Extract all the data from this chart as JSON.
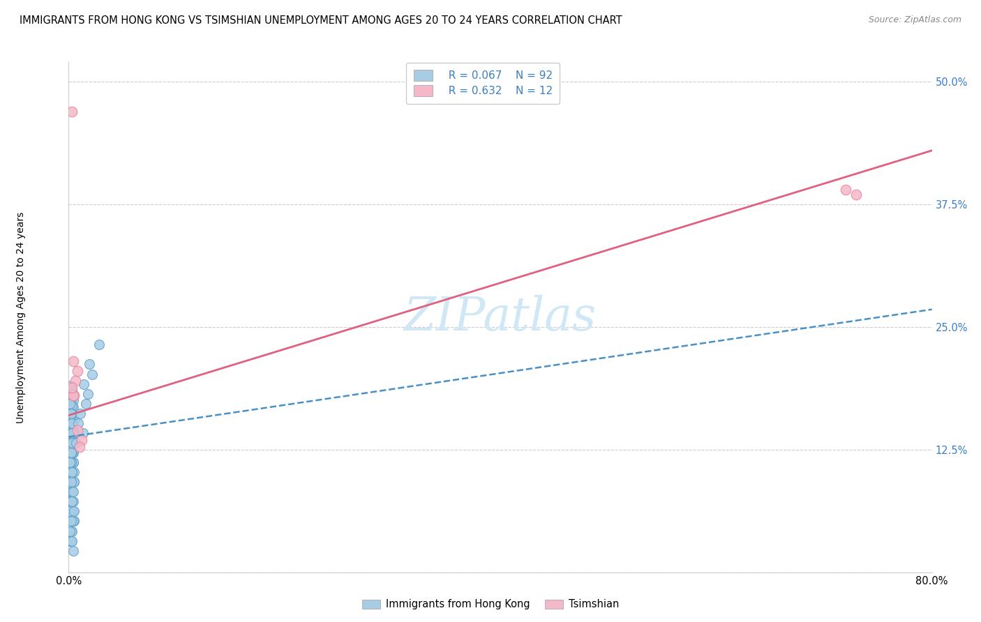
{
  "title": "IMMIGRANTS FROM HONG KONG VS TSIMSHIAN UNEMPLOYMENT AMONG AGES 20 TO 24 YEARS CORRELATION CHART",
  "source": "Source: ZipAtlas.com",
  "ylabel": "Unemployment Among Ages 20 to 24 years",
  "xlim": [
    0.0,
    0.8
  ],
  "ylim": [
    0.0,
    0.52
  ],
  "yticks": [
    0.0,
    0.125,
    0.25,
    0.375,
    0.5
  ],
  "ytick_labels": [
    "",
    "12.5%",
    "25.0%",
    "37.5%",
    "50.0%"
  ],
  "xticks": [
    0.0,
    0.1,
    0.2,
    0.3,
    0.4,
    0.5,
    0.6,
    0.7,
    0.8
  ],
  "xtick_labels": [
    "0.0%",
    "",
    "",
    "",
    "",
    "",
    "",
    "",
    "80.0%"
  ],
  "legend_label1": "Immigrants from Hong Kong",
  "legend_label2": "Tsimshian",
  "blue_color": "#a8cce4",
  "pink_color": "#f4b8c8",
  "blue_edge_color": "#5b9fc8",
  "pink_edge_color": "#e8849a",
  "blue_line_color": "#4a90c4",
  "pink_line_color": "#e06080",
  "watermark_color": "#d0e8f5",
  "R1": "0.067",
  "N1": "92",
  "R2": "0.632",
  "N2": "12",
  "blue_points_x": [
    0.004,
    0.003,
    0.002,
    0.004,
    0.005,
    0.003,
    0.002,
    0.001,
    0.003,
    0.003,
    0.002,
    0.004,
    0.003,
    0.004,
    0.002,
    0.001,
    0.003,
    0.002,
    0.004,
    0.003,
    0.002,
    0.001,
    0.003,
    0.002,
    0.004,
    0.003,
    0.005,
    0.002,
    0.001,
    0.004,
    0.003,
    0.002,
    0.004,
    0.003,
    0.002,
    0.004,
    0.005,
    0.003,
    0.002,
    0.001,
    0.003,
    0.003,
    0.002,
    0.004,
    0.003,
    0.004,
    0.002,
    0.001,
    0.003,
    0.002,
    0.004,
    0.003,
    0.005,
    0.002,
    0.001,
    0.004,
    0.003,
    0.002,
    0.004,
    0.003,
    0.002,
    0.003,
    0.005,
    0.003,
    0.002,
    0.001,
    0.004,
    0.003,
    0.002,
    0.004,
    0.003,
    0.003,
    0.002,
    0.001,
    0.003,
    0.002,
    0.004,
    0.003,
    0.005,
    0.002,
    0.001,
    0.003,
    0.009,
    0.013,
    0.007,
    0.011,
    0.016,
    0.018,
    0.014,
    0.022,
    0.019,
    0.028
  ],
  "blue_points_y": [
    0.175,
    0.185,
    0.19,
    0.168,
    0.155,
    0.148,
    0.172,
    0.182,
    0.162,
    0.152,
    0.145,
    0.135,
    0.17,
    0.122,
    0.112,
    0.102,
    0.092,
    0.082,
    0.145,
    0.155,
    0.162,
    0.172,
    0.132,
    0.122,
    0.112,
    0.102,
    0.092,
    0.082,
    0.072,
    0.062,
    0.162,
    0.152,
    0.142,
    0.132,
    0.122,
    0.112,
    0.102,
    0.092,
    0.082,
    0.072,
    0.062,
    0.052,
    0.042,
    0.142,
    0.132,
    0.122,
    0.112,
    0.102,
    0.092,
    0.082,
    0.072,
    0.062,
    0.052,
    0.042,
    0.032,
    0.142,
    0.152,
    0.162,
    0.132,
    0.122,
    0.112,
    0.102,
    0.092,
    0.082,
    0.072,
    0.062,
    0.052,
    0.042,
    0.032,
    0.022,
    0.142,
    0.132,
    0.122,
    0.112,
    0.102,
    0.092,
    0.082,
    0.072,
    0.062,
    0.052,
    0.042,
    0.032,
    0.152,
    0.142,
    0.132,
    0.162,
    0.172,
    0.182,
    0.192,
    0.202,
    0.212,
    0.232
  ],
  "pink_points_x": [
    0.003,
    0.004,
    0.005,
    0.008,
    0.006,
    0.004,
    0.003,
    0.72,
    0.73,
    0.008,
    0.012,
    0.01
  ],
  "pink_points_y": [
    0.47,
    0.215,
    0.18,
    0.205,
    0.195,
    0.18,
    0.188,
    0.39,
    0.385,
    0.145,
    0.135,
    0.128
  ],
  "blue_trend_x": [
    0.0,
    0.8
  ],
  "blue_trend_y": [
    0.138,
    0.268
  ],
  "pink_trend_x": [
    0.0,
    0.8
  ],
  "pink_trend_y": [
    0.16,
    0.43
  ]
}
